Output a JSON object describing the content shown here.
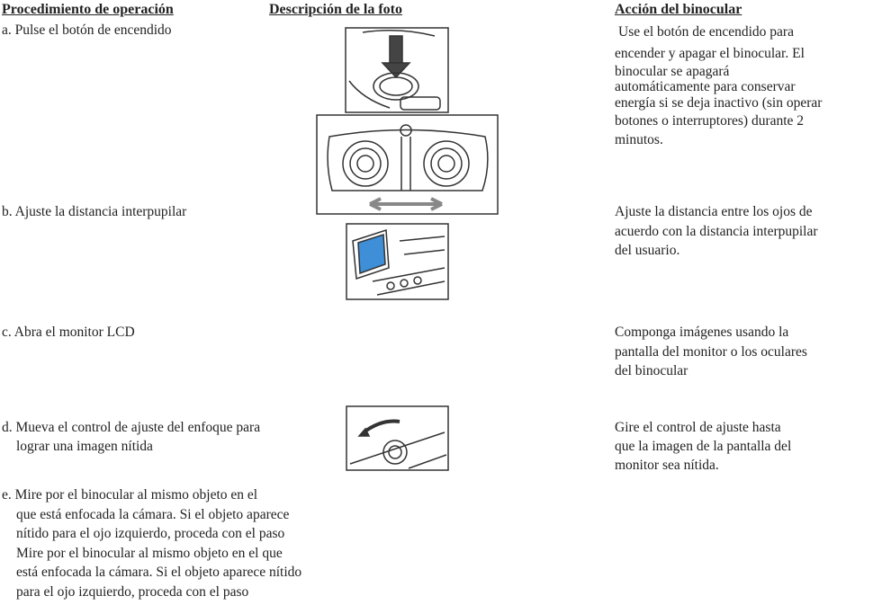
{
  "header": {
    "procedure": "Procedimiento de operación",
    "photo": "Descripción de la foto",
    "action": "Acción del binocular"
  },
  "rows": [
    {
      "procedure": [
        "a. Pulse el botón de encendido"
      ],
      "action": [
        "Use el botón de encendido para",
        "encender y apagar el binocular. El",
        "binocular se apagará",
        "automáticamente para conservar",
        "energía si se deja inactivo (sin operar",
        "botones o interruptores) durante 2",
        "minutos."
      ]
    },
    {
      "procedure": [
        "b. Ajuste la distancia interpupilar"
      ],
      "action": [
        "Ajuste la distancia entre los ojos de",
        "acuerdo con la distancia interpupilar",
        "del usuario."
      ]
    },
    {
      "procedure": [
        "c. Abra el monitor LCD"
      ],
      "action": [
        "Componga imágenes usando la",
        "pantalla del monitor o los oculares",
        "del binocular"
      ]
    },
    {
      "procedure": [
        "d. Mueva el control de ajuste del enfoque para",
        "lograr una imagen nítida"
      ],
      "action": [
        "Gire el control de ajuste hasta",
        "que la imagen de la pantalla del",
        "monitor sea nítida."
      ]
    },
    {
      "procedure": [
        "e. Mire por el binocular al mismo objeto en el",
        "que está enfocada la cámara. Si el objeto aparece",
        "nítido para el ojo izquierdo, proceda con el paso",
        "Mire por el binocular al mismo objeto en el que",
        "está enfocada la cámara. Si el objeto aparece nítido",
        "para el ojo izquierdo, proceda con el paso"
      ],
      "action": []
    }
  ]
}
